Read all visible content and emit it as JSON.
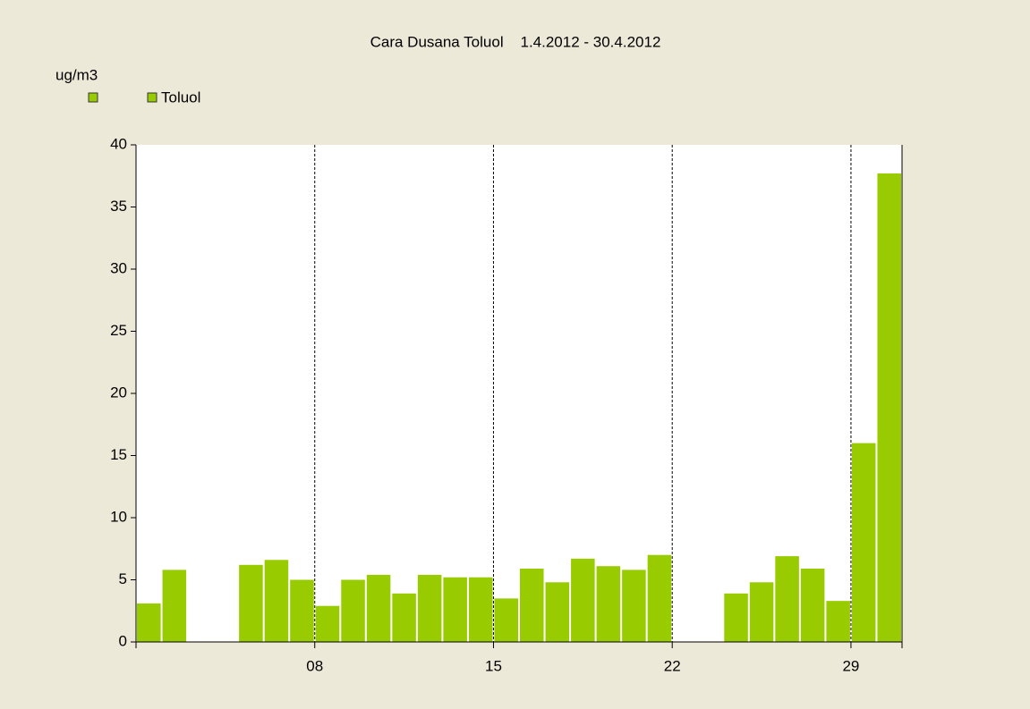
{
  "chart_data": {
    "type": "bar",
    "title": "Cara Dusana Toluol    1.4.2012 - 30.4.2012",
    "y_label": "ug/m3",
    "categories": [
      null,
      null,
      null,
      null,
      null,
      null,
      null,
      "08",
      null,
      null,
      null,
      null,
      null,
      null,
      "15",
      null,
      null,
      null,
      null,
      null,
      null,
      "22",
      null,
      null,
      null,
      null,
      null,
      null,
      "29",
      null
    ],
    "series": [
      {
        "name": "Toluol",
        "color": "#99cc00",
        "values": [
          3.1,
          5.8,
          null,
          null,
          6.2,
          6.6,
          5.0,
          2.9,
          5.0,
          5.4,
          3.9,
          5.4,
          5.2,
          5.2,
          3.5,
          5.9,
          4.8,
          6.7,
          6.1,
          5.8,
          7.0,
          null,
          null,
          3.9,
          4.8,
          6.9,
          5.9,
          3.3,
          16.0,
          37.7
        ]
      }
    ],
    "ylim": [
      0,
      40
    ],
    "yticks": [
      0,
      5,
      10,
      15,
      20,
      25,
      30,
      35,
      40
    ],
    "grid": true
  }
}
